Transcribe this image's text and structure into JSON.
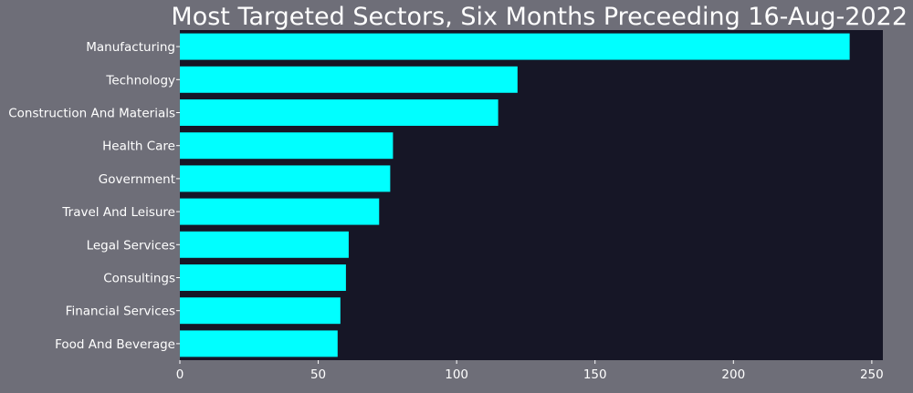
{
  "colors": {
    "figure_background": "#6e6e78",
    "plot_background": "#161626",
    "bar": "#00ffff",
    "text": "#ffffff"
  },
  "chart_data": {
    "type": "bar",
    "orientation": "horizontal",
    "title": "Most Targeted Sectors, Six Months Preceeding 16-Aug-2022",
    "xlabel": "",
    "ylabel": "",
    "categories": [
      "Manufacturing",
      "Technology",
      "Construction And Materials",
      "Health Care",
      "Government",
      "Travel And Leisure",
      "Legal Services",
      "Consultings",
      "Financial Services",
      "Food And Beverage"
    ],
    "values": [
      242,
      122,
      115,
      77,
      76,
      72,
      61,
      60,
      58,
      57
    ],
    "xlim": [
      0,
      254
    ],
    "xticks": [
      "0",
      "50",
      "100",
      "150",
      "200",
      "250"
    ],
    "grid": false,
    "legend": "none"
  }
}
